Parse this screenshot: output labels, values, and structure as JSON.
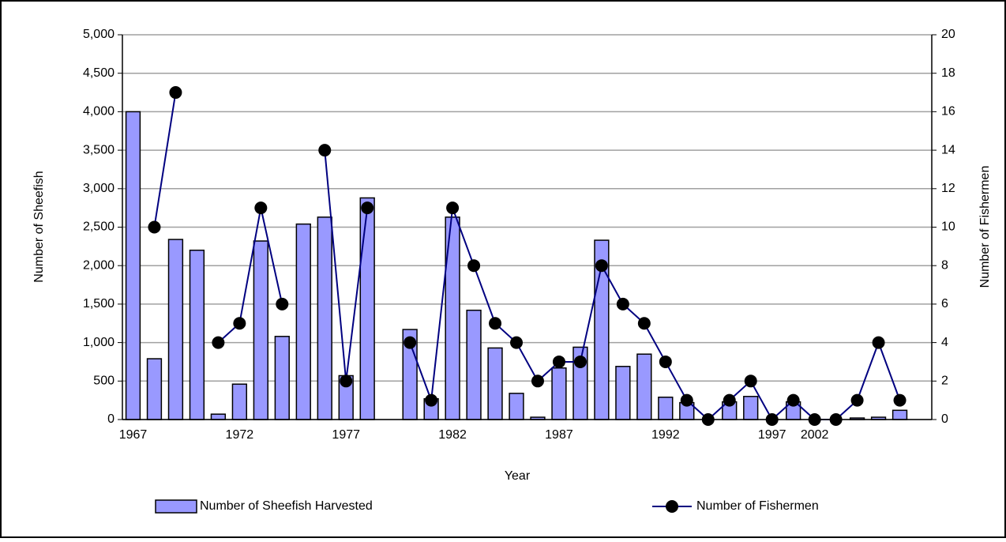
{
  "chart_data": {
    "type": "bar_line",
    "categories": [
      "1967",
      null,
      null,
      null,
      null,
      "1972",
      null,
      null,
      null,
      null,
      "1977",
      null,
      null,
      null,
      null,
      "1982",
      null,
      null,
      null,
      null,
      "1987",
      null,
      null,
      null,
      null,
      "1992",
      null,
      null,
      null,
      null,
      "1997",
      null,
      "2002",
      null,
      null,
      null,
      null,
      null
    ],
    "xlabel": "Year",
    "ylabel": "Number of Sheefish",
    "y2label": "Number of Fishermen",
    "series": [
      {
        "name": "Number of Sheefish Harvested",
        "color": "#9999ff",
        "kind": "bar",
        "values": [
          4000,
          790,
          2340,
          2200,
          70,
          460,
          2320,
          1080,
          2540,
          2630,
          570,
          2880,
          null,
          1170,
          270,
          2630,
          1420,
          930,
          340,
          30,
          670,
          940,
          2330,
          690,
          850,
          290,
          220,
          0,
          230,
          300,
          0,
          230,
          0,
          0,
          20,
          30,
          120,
          null
        ]
      },
      {
        "name": "Number of Fishermen",
        "color": "#000080",
        "kind": "line",
        "axis": "y2",
        "values": [
          null,
          10,
          17,
          null,
          4,
          5,
          11,
          6,
          null,
          14,
          2,
          11,
          null,
          4,
          1,
          11,
          8,
          5,
          4,
          2,
          3,
          3,
          8,
          6,
          5,
          3,
          1,
          0,
          1,
          2,
          0,
          1,
          0,
          0,
          1,
          4,
          1,
          null
        ]
      }
    ],
    "ylim": [
      0,
      5000
    ],
    "yticks": [
      0,
      500,
      {
        "value": 1000,
        "label": "1,000"
      },
      {
        "value": 1500,
        "label": "1,500"
      },
      {
        "value": 2000,
        "label": "2,000"
      },
      {
        "value": 2500,
        "label": "2,500"
      },
      {
        "value": 3000,
        "label": "3,000"
      },
      {
        "value": 3500,
        "label": "3,500"
      },
      {
        "value": 4000,
        "label": "4,000"
      },
      {
        "value": 4500,
        "label": "4,500"
      },
      {
        "value": 5000,
        "label": "5,000"
      }
    ],
    "y2lim": [
      0,
      20
    ],
    "y2ticks": [
      0,
      2,
      4,
      6,
      8,
      10,
      12,
      14,
      16,
      18,
      20
    ],
    "grid": true,
    "legend": "bottom"
  }
}
